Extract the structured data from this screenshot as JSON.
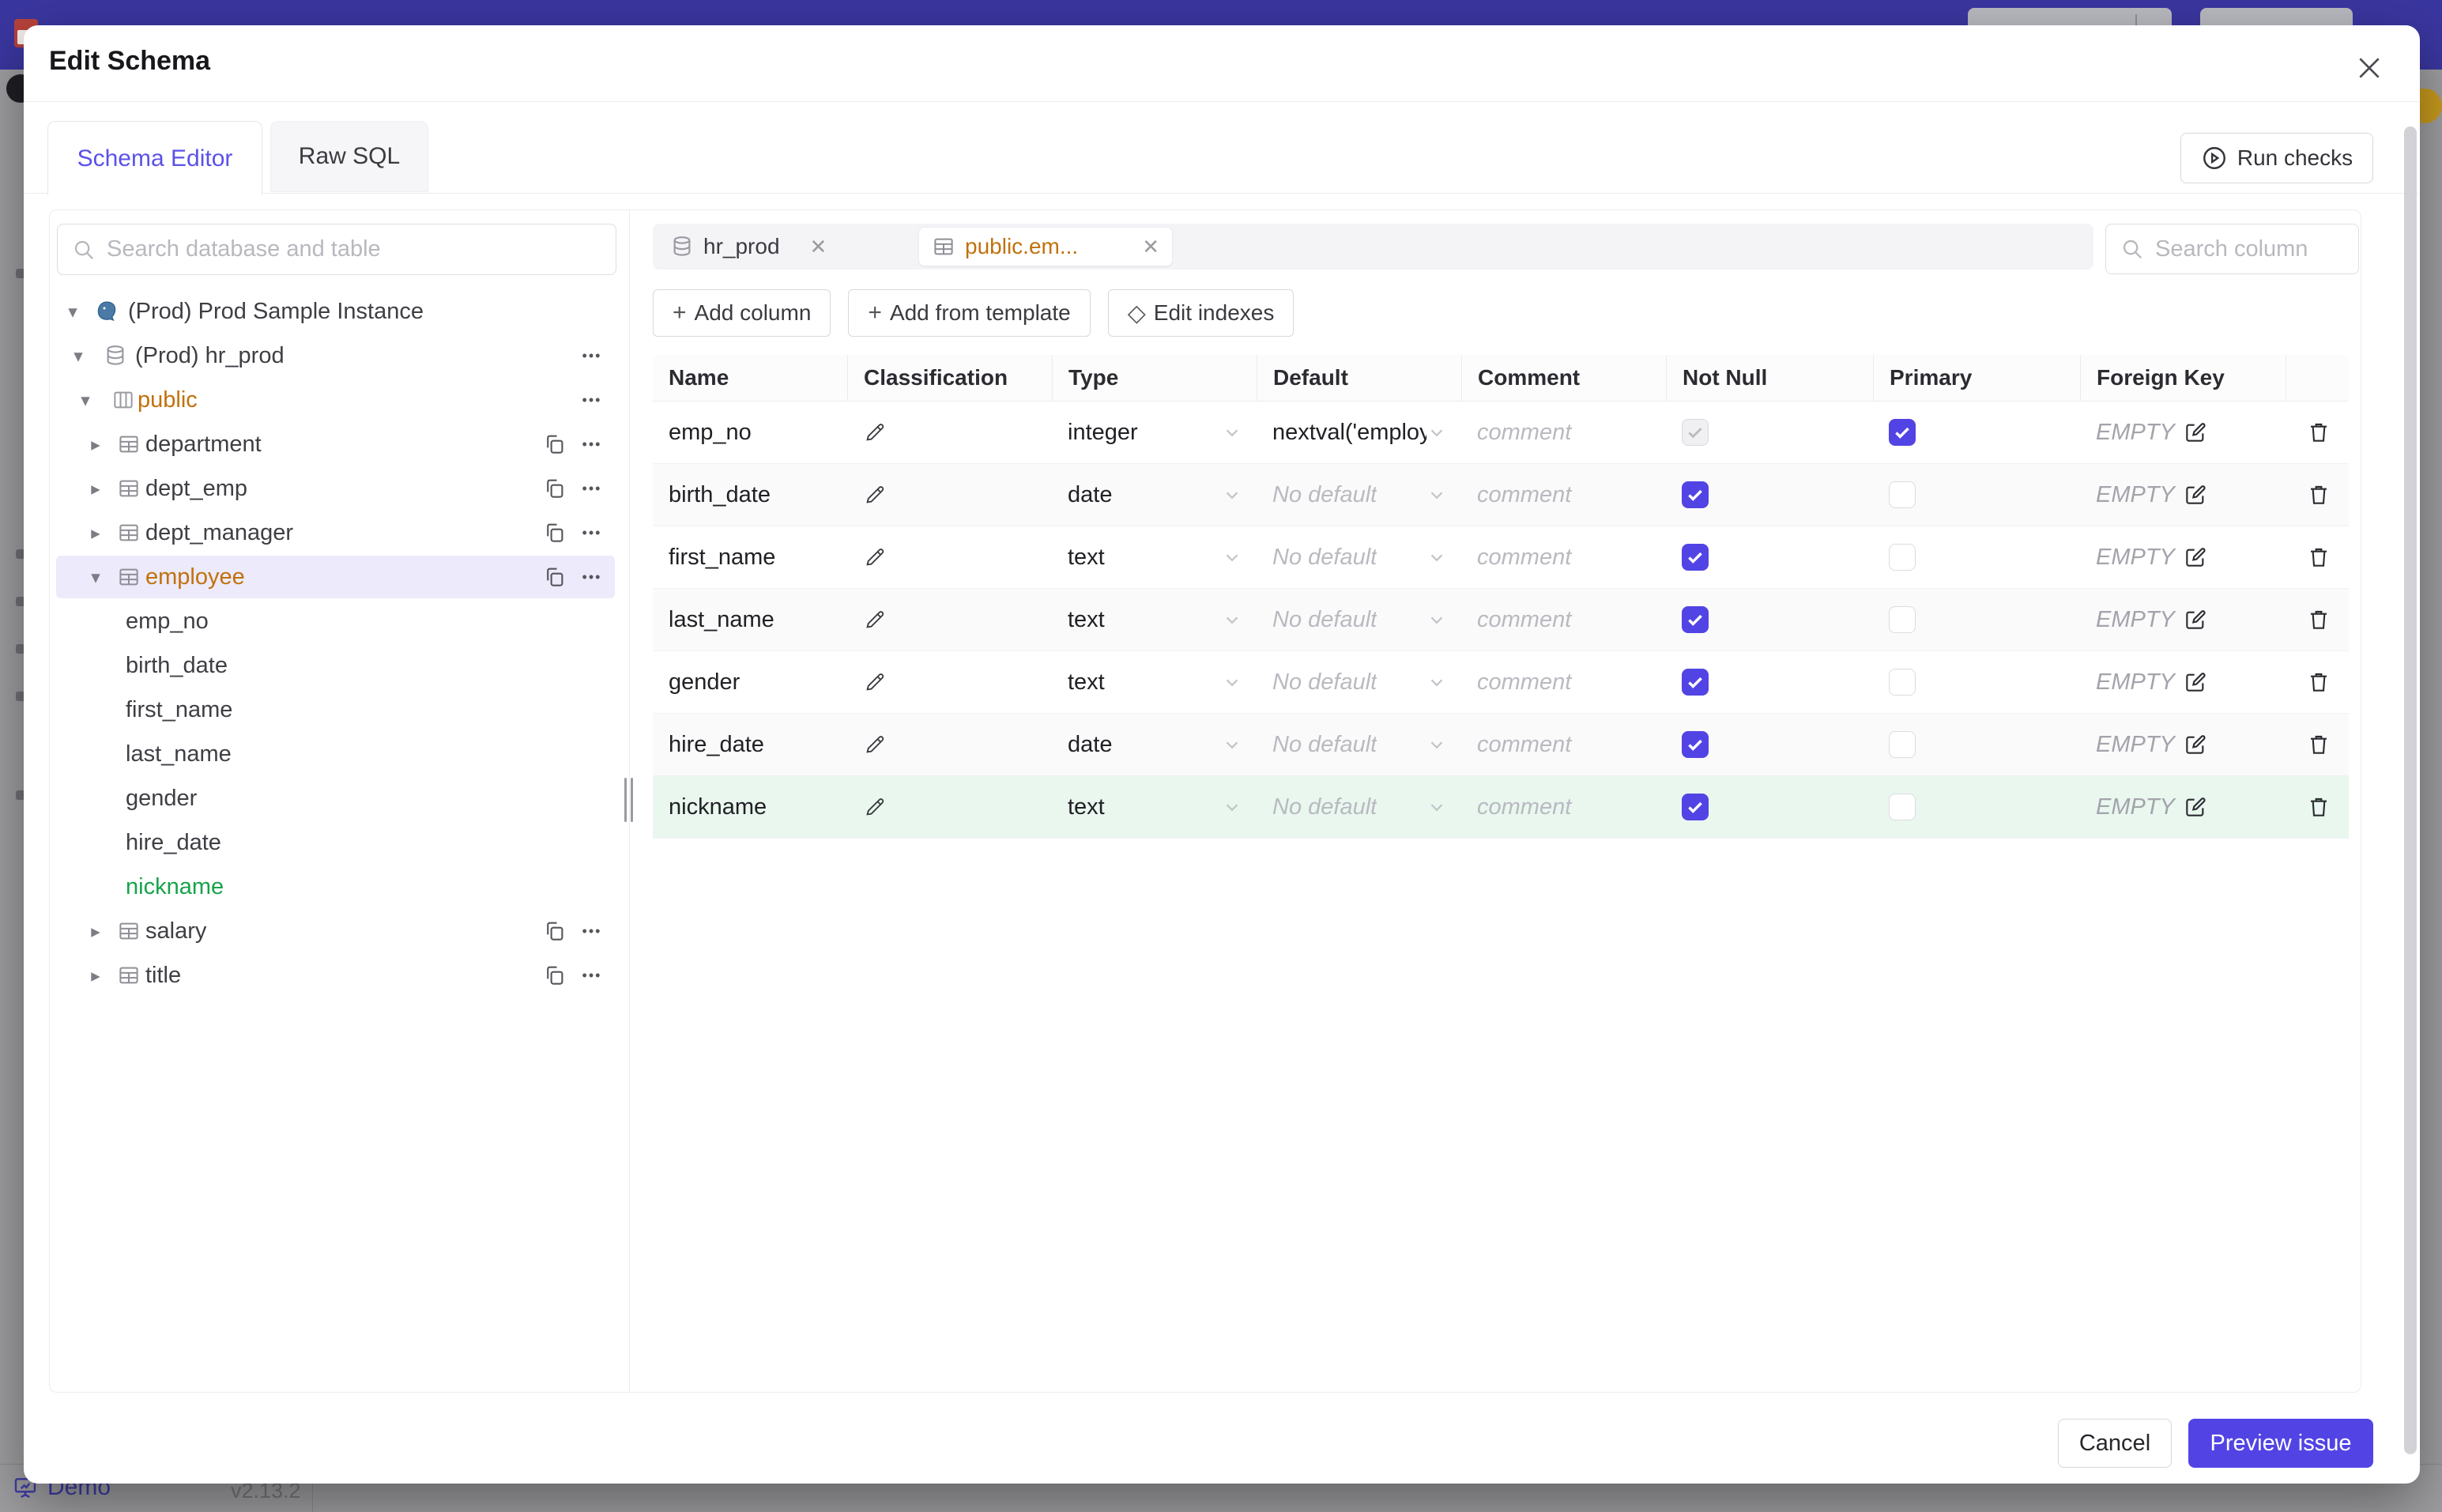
{
  "backdrop": {
    "footer": {
      "demo": "Demo",
      "version": "v2.13.2"
    }
  },
  "modal": {
    "title": "Edit Schema",
    "main_tabs": [
      {
        "label": "Schema Editor",
        "active": true
      },
      {
        "label": "Raw SQL",
        "active": false
      }
    ],
    "run_checks_label": "Run checks",
    "sidebar": {
      "search_placeholder": "Search database and table",
      "tree": [
        {
          "depth": 0,
          "caret": "down",
          "icon": "postgres",
          "label": "(Prod) Prod Sample Instance"
        },
        {
          "depth": 1,
          "caret": "down",
          "icon": "database",
          "label": "(Prod) hr_prod",
          "more": true
        },
        {
          "depth": 2,
          "caret": "down",
          "icon": "schema",
          "label": "public",
          "color": "orange",
          "more": true
        },
        {
          "depth": 3,
          "caret": "right",
          "icon": "table",
          "label": "department",
          "copy": true,
          "more": true
        },
        {
          "depth": 3,
          "caret": "right",
          "icon": "table",
          "label": "dept_emp",
          "copy": true,
          "more": true
        },
        {
          "depth": 3,
          "caret": "right",
          "icon": "table",
          "label": "dept_manager",
          "copy": true,
          "more": true
        },
        {
          "depth": 3,
          "caret": "down",
          "icon": "table",
          "label": "employee",
          "color": "orange",
          "copy": true,
          "more": true,
          "selected": true
        },
        {
          "depth": 4,
          "label": "emp_no"
        },
        {
          "depth": 4,
          "label": "birth_date"
        },
        {
          "depth": 4,
          "label": "first_name"
        },
        {
          "depth": 4,
          "label": "last_name"
        },
        {
          "depth": 4,
          "label": "gender"
        },
        {
          "depth": 4,
          "label": "hire_date"
        },
        {
          "depth": 4,
          "label": "nickname",
          "color": "green"
        },
        {
          "depth": 3,
          "caret": "right",
          "icon": "table",
          "label": "salary",
          "copy": true,
          "more": true
        },
        {
          "depth": 3,
          "caret": "right",
          "icon": "table",
          "label": "title",
          "copy": true,
          "more": true
        }
      ]
    },
    "editor": {
      "open_tabs": [
        {
          "label": "hr_prod",
          "icon": "database",
          "active": false
        },
        {
          "label": "public.em...",
          "icon": "table",
          "active": true
        }
      ],
      "toolbar": [
        {
          "icon": "plus",
          "label": "Add column"
        },
        {
          "icon": "plus",
          "label": "Add from template"
        },
        {
          "icon": "diamond",
          "label": "Edit indexes"
        }
      ],
      "search_placeholder": "Search column",
      "table": {
        "headers": [
          "Name",
          "Classification",
          "Type",
          "Default",
          "Comment",
          "Not Null",
          "Primary",
          "Foreign Key"
        ],
        "comment_placeholder": "comment",
        "no_default_text": "No default",
        "fk_empty_text": "EMPTY",
        "rows": [
          {
            "name": "emp_no",
            "type": "integer",
            "default": "nextval('employ",
            "has_default": true,
            "not_null_checked": true,
            "not_null_disabled": true,
            "primary": true,
            "highlight": "none"
          },
          {
            "name": "birth_date",
            "type": "date",
            "default": "",
            "has_default": false,
            "not_null_checked": true,
            "not_null_disabled": false,
            "primary": false,
            "highlight": "stripe"
          },
          {
            "name": "first_name",
            "type": "text",
            "default": "",
            "has_default": false,
            "not_null_checked": true,
            "not_null_disabled": false,
            "primary": false,
            "highlight": "none"
          },
          {
            "name": "last_name",
            "type": "text",
            "default": "",
            "has_default": false,
            "not_null_checked": true,
            "not_null_disabled": false,
            "primary": false,
            "highlight": "stripe"
          },
          {
            "name": "gender",
            "type": "text",
            "default": "",
            "has_default": false,
            "not_null_checked": true,
            "not_null_disabled": false,
            "primary": false,
            "highlight": "none"
          },
          {
            "name": "hire_date",
            "type": "date",
            "default": "",
            "has_default": false,
            "not_null_checked": true,
            "not_null_disabled": false,
            "primary": false,
            "highlight": "stripe"
          },
          {
            "name": "nickname",
            "type": "text",
            "default": "",
            "has_default": false,
            "not_null_checked": true,
            "not_null_disabled": false,
            "primary": false,
            "highlight": "new"
          }
        ]
      }
    },
    "footer": {
      "cancel": "Cancel",
      "primary": "Preview issue"
    }
  },
  "colors": {
    "accent": "#5244e4",
    "orange": "#c1710c",
    "green": "#17a34a",
    "header_bar": "#3a36a0",
    "selected_row": "#eceafb",
    "new_row": "#e9f7ef"
  }
}
